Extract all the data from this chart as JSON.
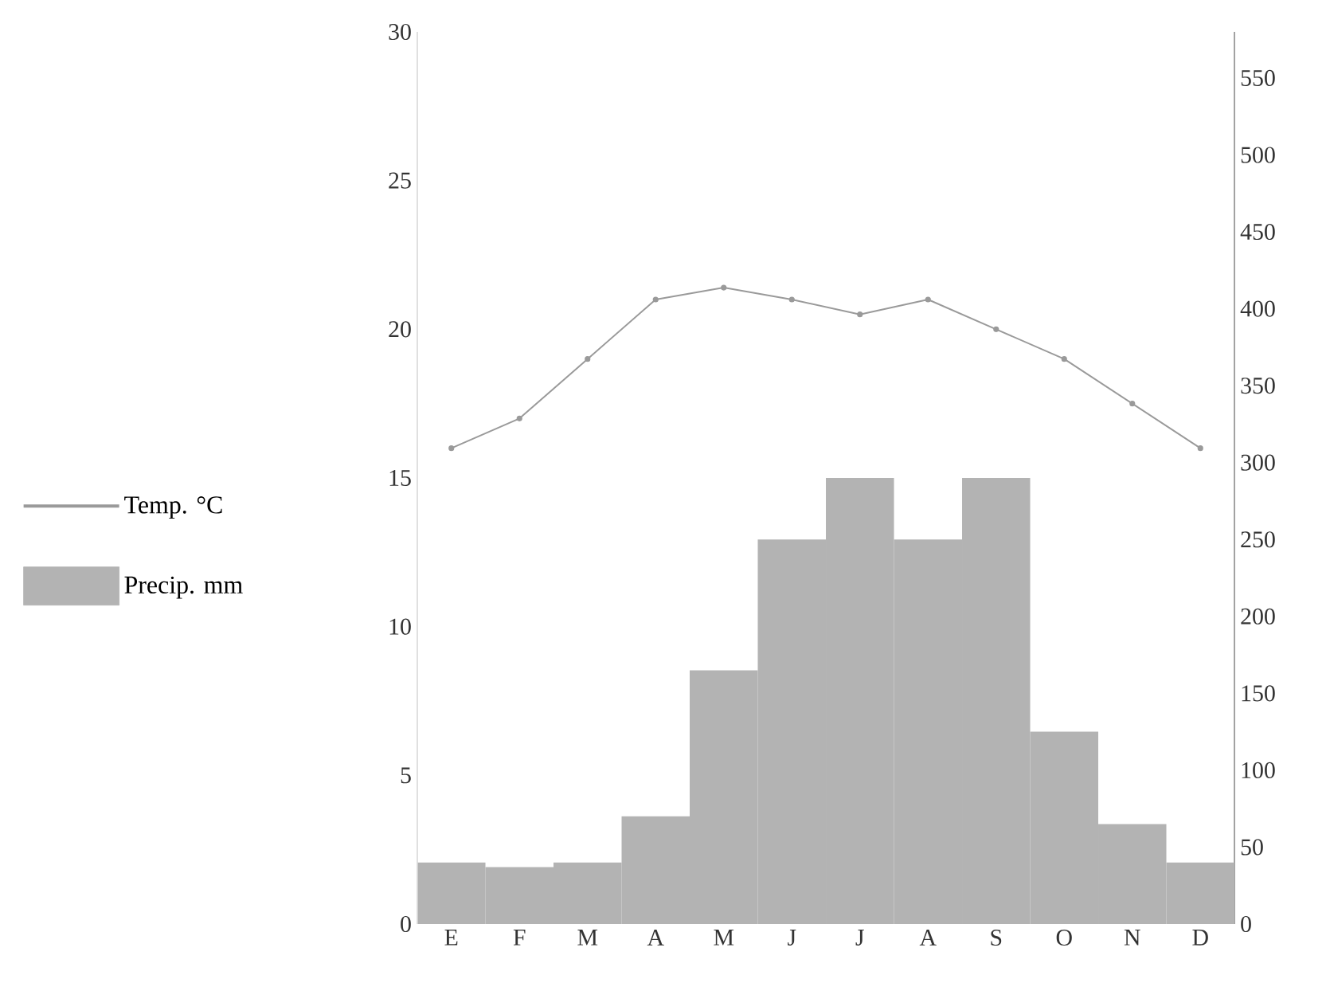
{
  "chart_data": {
    "type": "bar",
    "categories": [
      "E",
      "F",
      "M",
      "A",
      "M",
      "J",
      "J",
      "A",
      "S",
      "O",
      "N",
      "D"
    ],
    "series": [
      {
        "name": "Temp. °C",
        "type": "line",
        "color": "#9a9a9a",
        "values": [
          16,
          17,
          19,
          21,
          21.4,
          21,
          20.5,
          21,
          20,
          19,
          17.5,
          16
        ]
      },
      {
        "name": "Precip. mm",
        "type": "bar",
        "axis": "y2",
        "color": "#b3b3b3",
        "values": [
          40,
          37,
          40,
          70,
          165,
          250,
          290,
          250,
          290,
          125,
          65,
          40
        ]
      }
    ],
    "ylim": [
      0,
      30
    ],
    "yticks": [
      0,
      5,
      10,
      15,
      20,
      25,
      30
    ],
    "y2lim": [
      0,
      580
    ],
    "y2ticks": [
      0,
      50,
      100,
      150,
      200,
      250,
      300,
      350,
      400,
      450,
      500,
      550
    ],
    "marker": "circle",
    "line_style": "solid",
    "legend": "left",
    "grid": false
  }
}
